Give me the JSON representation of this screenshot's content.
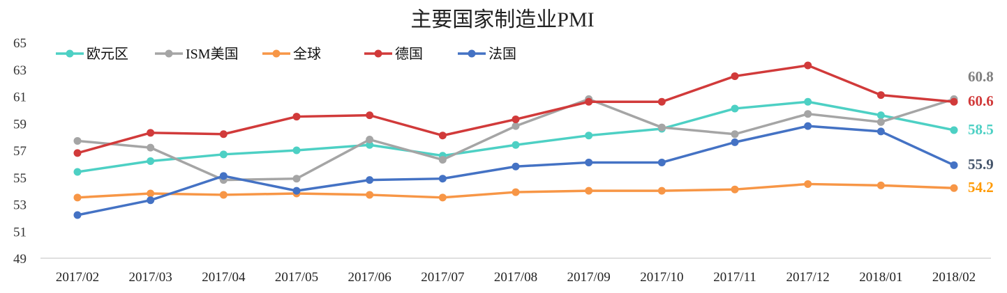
{
  "chart_data": {
    "type": "line",
    "title": "主要国家制造业PMI",
    "xlabel": "",
    "ylabel": "",
    "ylim": [
      49,
      65
    ],
    "yticks": [
      49,
      51,
      53,
      55,
      57,
      59,
      61,
      63,
      65
    ],
    "grid": false,
    "legend_position": "top-left",
    "categories": [
      "2017/02",
      "2017/03",
      "2017/04",
      "2017/05",
      "2017/06",
      "2017/07",
      "2017/08",
      "2017/09",
      "2017/10",
      "2017/11",
      "2017/12",
      "2018/01",
      "2018/02"
    ],
    "series": [
      {
        "name": "欧元区",
        "color": "#4dd0c4",
        "label_color": "#4dd0c4",
        "end_label": "58.5",
        "values": [
          55.4,
          56.2,
          56.7,
          57.0,
          57.4,
          56.6,
          57.4,
          58.1,
          58.6,
          60.1,
          60.6,
          59.6,
          58.5
        ]
      },
      {
        "name": "ISM美国",
        "color": "#a5a5a5",
        "label_color": "#7f7f7f",
        "end_label": "60.8",
        "values": [
          57.7,
          57.2,
          54.8,
          54.9,
          57.8,
          56.3,
          58.8,
          60.8,
          58.7,
          58.2,
          59.7,
          59.1,
          60.8
        ]
      },
      {
        "name": "全球",
        "color": "#f79646",
        "label_color": "#ff9900",
        "end_label": "54.2",
        "values": [
          53.5,
          53.8,
          53.7,
          53.8,
          53.7,
          53.5,
          53.9,
          54.0,
          54.0,
          54.1,
          54.5,
          54.4,
          54.2
        ]
      },
      {
        "name": "德国",
        "color": "#d13a3a",
        "label_color": "#d13a3a",
        "end_label": "60.6",
        "values": [
          56.8,
          58.3,
          58.2,
          59.5,
          59.6,
          58.1,
          59.3,
          60.6,
          60.6,
          62.5,
          63.3,
          61.1,
          60.6
        ]
      },
      {
        "name": "法国",
        "color": "#4472c4",
        "label_color": "#44546a",
        "end_label": "55.9",
        "values": [
          52.2,
          53.3,
          55.1,
          54.0,
          54.8,
          54.9,
          55.8,
          56.1,
          56.1,
          57.6,
          58.8,
          58.4,
          55.9
        ]
      }
    ]
  }
}
